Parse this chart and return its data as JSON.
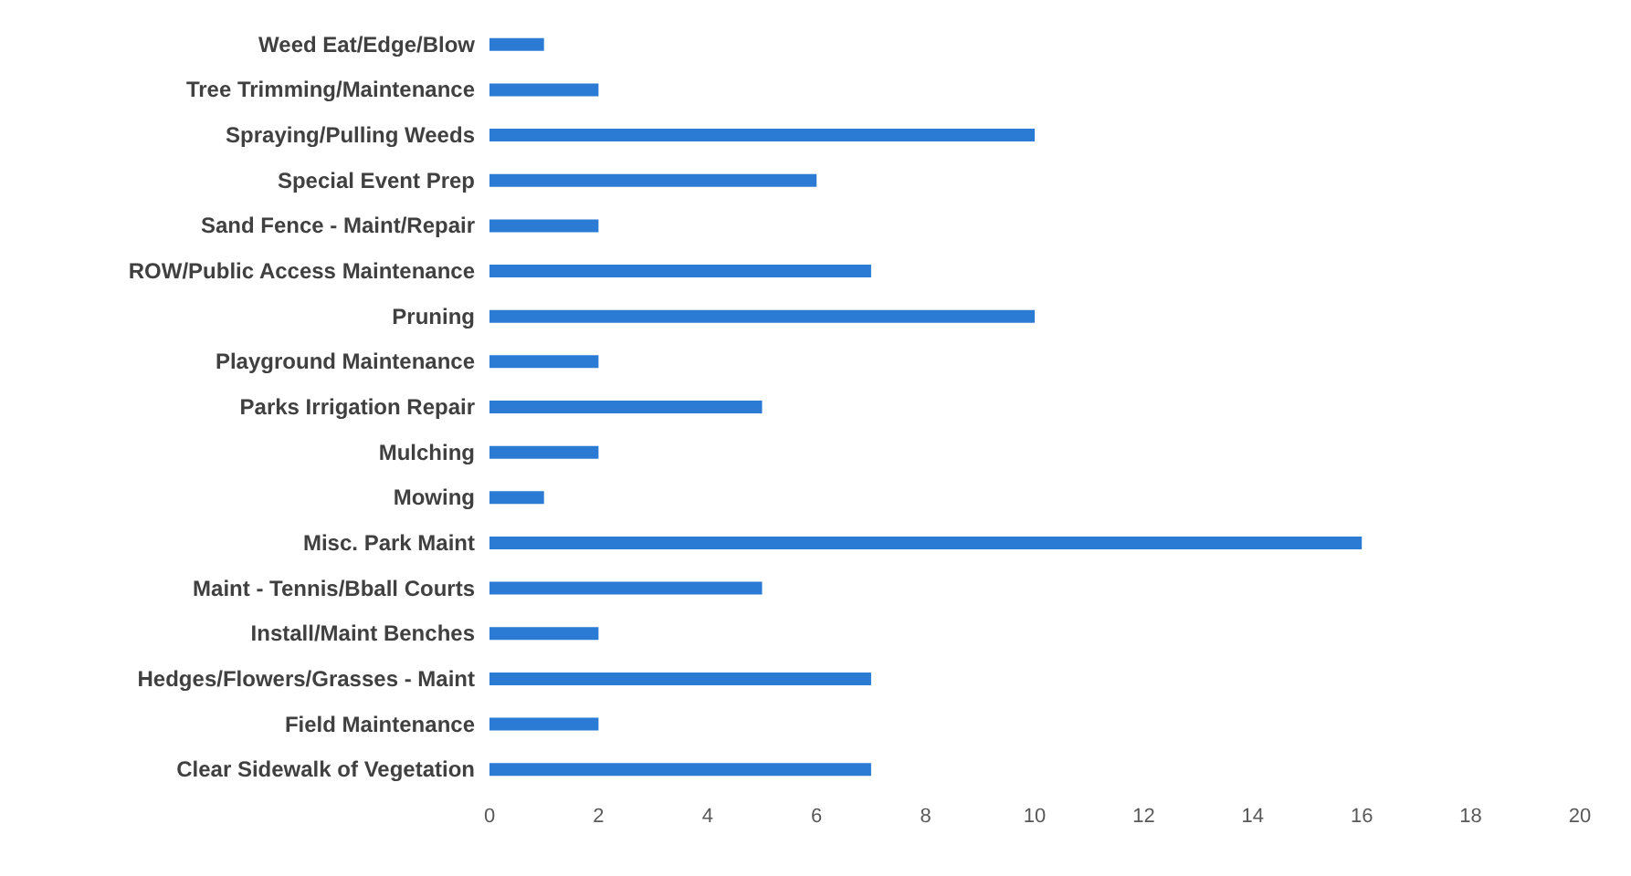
{
  "chart_data": {
    "type": "bar",
    "orientation": "horizontal",
    "categories": [
      "Weed Eat/Edge/Blow",
      "Tree Trimming/Maintenance",
      "Spraying/Pulling Weeds",
      "Special Event Prep",
      "Sand Fence - Maint/Repair",
      "ROW/Public Access Maintenance",
      "Pruning",
      "Playground Maintenance",
      "Parks Irrigation Repair",
      "Mulching",
      "Mowing",
      "Misc. Park Maint",
      "Maint - Tennis/Bball Courts",
      "Install/Maint Benches",
      "Hedges/Flowers/Grasses - Maint",
      "Field Maintenance",
      "Clear Sidewalk of Vegetation"
    ],
    "values": [
      1,
      2,
      10,
      6,
      2,
      7,
      10,
      2,
      5,
      2,
      1,
      16,
      5,
      2,
      7,
      2,
      7
    ],
    "color": "#2b7bd4",
    "xlim": [
      0,
      20
    ],
    "xticks": [
      0,
      2,
      4,
      6,
      8,
      10,
      12,
      14,
      16,
      18,
      20
    ],
    "grid": false
  }
}
